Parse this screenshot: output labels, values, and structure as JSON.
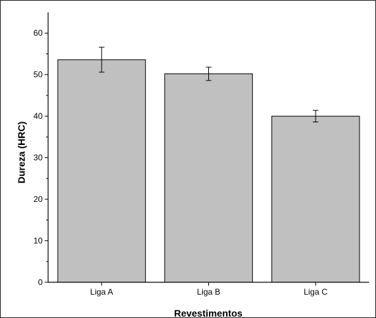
{
  "chart_data": {
    "type": "bar",
    "title": "",
    "xlabel": "Revestimentos",
    "ylabel": "Dureza (HRC)",
    "categories": [
      "Liga A",
      "Liga B",
      "Liga C"
    ],
    "values": [
      53.6,
      50.2,
      40.0
    ],
    "errors": [
      3.0,
      1.6,
      1.4
    ],
    "ylim": [
      0,
      65
    ],
    "yticks": [
      0,
      10,
      20,
      30,
      40,
      50,
      60
    ],
    "bar_color": "#c0c0c0",
    "bar_edge_color": "#000000",
    "grid": false,
    "legend": "none"
  }
}
